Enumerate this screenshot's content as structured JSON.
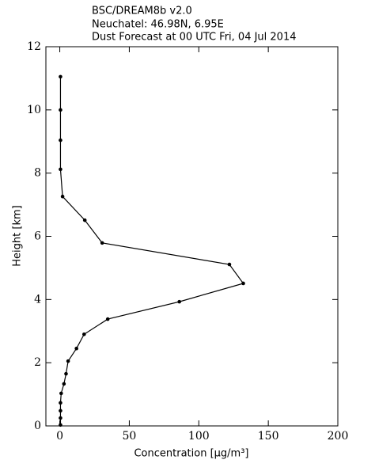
{
  "chart_data": {
    "type": "line",
    "title_lines": [
      "BSC/DREAM8b v2.0",
      "Neuchatel: 46.98N, 6.95E",
      "Dust Forecast at 00 UTC Fri, 04 Jul 2014"
    ],
    "xlabel": "Concentration [μg/m³]",
    "ylabel": "Height [km]",
    "xlim": [
      -10,
      200
    ],
    "xticks": [
      0,
      50,
      100,
      150,
      200
    ],
    "ylim": [
      0,
      12
    ],
    "yticks": [
      0,
      2,
      4,
      6,
      8,
      10,
      12
    ],
    "series": [
      {
        "color": "#000000",
        "x": [
          0.5,
          0.5,
          0.5,
          0.5,
          1,
          3,
          4.5,
          6,
          12,
          17.5,
          34.5,
          86,
          132,
          122,
          30.5,
          18,
          2,
          0.5,
          0.5,
          0.5,
          0.5
        ],
        "y": [
          0.03,
          0.25,
          0.48,
          0.73,
          1.03,
          1.33,
          1.65,
          2.05,
          2.45,
          2.9,
          3.38,
          3.93,
          4.51,
          5.11,
          5.79,
          6.51,
          7.26,
          8.12,
          9.04,
          10.0,
          11.05
        ]
      }
    ]
  }
}
